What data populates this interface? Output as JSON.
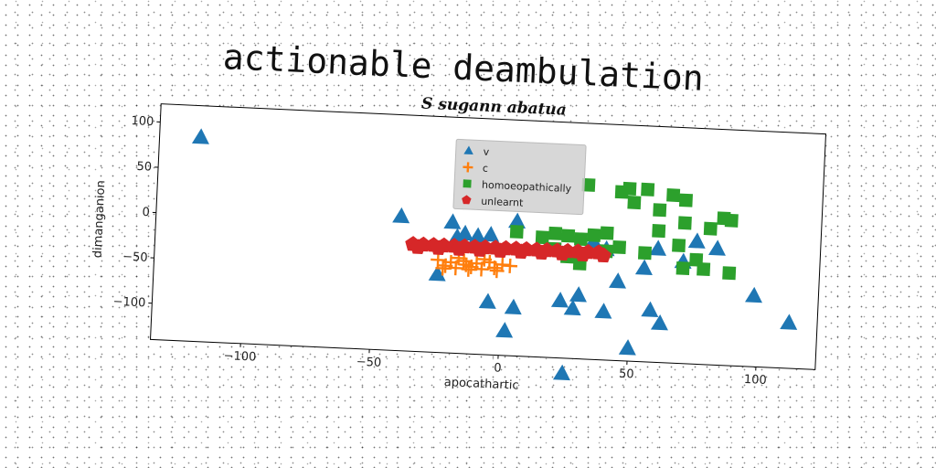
{
  "title": "actionable deambulation",
  "chart_data": {
    "type": "scatter",
    "title": "S sugann abatua",
    "xlabel": "apocathartic",
    "ylabel": "dimanganion",
    "xlim": [
      -135,
      123
    ],
    "ylim": [
      -140,
      120
    ],
    "xticks": [
      -100,
      -50,
      0,
      50,
      100
    ],
    "yticks": [
      100,
      50,
      0,
      -50,
      -100
    ],
    "grid": false,
    "legend": "top-center",
    "series": [
      {
        "name": "v",
        "marker": "triangle",
        "color": "#1f77b4",
        "points": [
          [
            -119,
            85
          ],
          [
            -40,
            8
          ],
          [
            -20,
            4
          ],
          [
            -18,
            -12
          ],
          [
            -15,
            -8
          ],
          [
            -10,
            -10
          ],
          [
            -5,
            -8
          ],
          [
            5,
            8
          ],
          [
            -25,
            -54
          ],
          [
            -5,
            -82
          ],
          [
            5,
            -87
          ],
          [
            2,
            -113
          ],
          [
            23,
            -77
          ],
          [
            28,
            -85
          ],
          [
            30,
            -70
          ],
          [
            40,
            -87
          ],
          [
            45,
            -53
          ],
          [
            50,
            -126
          ],
          [
            58,
            -83
          ],
          [
            62,
            -97
          ],
          [
            60,
            -15
          ],
          [
            75,
            -5
          ],
          [
            83,
            -12
          ],
          [
            98,
            -62
          ],
          [
            112,
            -90
          ],
          [
            25,
            -157
          ],
          [
            35,
            -10
          ],
          [
            40,
            -18
          ],
          [
            70,
            -28
          ],
          [
            55,
            -37
          ]
        ]
      },
      {
        "name": "c",
        "marker": "plus",
        "color": "#ff7f0e",
        "points": [
          [
            -25,
            -38
          ],
          [
            -22,
            -44
          ],
          [
            -20,
            -40
          ],
          [
            -18,
            -46
          ],
          [
            -15,
            -38
          ],
          [
            -12,
            -44
          ],
          [
            -10,
            -40
          ],
          [
            -8,
            -46
          ],
          [
            -5,
            -38
          ],
          [
            -3,
            -44
          ],
          [
            0,
            -40
          ],
          [
            -23,
            -47
          ],
          [
            -17,
            -35
          ],
          [
            -13,
            -47
          ],
          [
            -7,
            -35
          ],
          [
            -2,
            -47
          ],
          [
            3,
            -41
          ],
          [
            -14,
            -42
          ]
        ]
      },
      {
        "name": "homoeopathically",
        "marker": "square",
        "color": "#2ca02c",
        "points": [
          [
            5,
            -3
          ],
          [
            15,
            -8
          ],
          [
            20,
            -3
          ],
          [
            25,
            -5
          ],
          [
            30,
            -8
          ],
          [
            35,
            -3
          ],
          [
            40,
            0
          ],
          [
            32,
            52
          ],
          [
            45,
            46
          ],
          [
            48,
            50
          ],
          [
            55,
            50
          ],
          [
            65,
            45
          ],
          [
            70,
            40
          ],
          [
            50,
            35
          ],
          [
            60,
            28
          ],
          [
            85,
            22
          ],
          [
            70,
            15
          ],
          [
            80,
            10
          ],
          [
            88,
            20
          ],
          [
            60,
            5
          ],
          [
            68,
            -10
          ],
          [
            55,
            -20
          ],
          [
            75,
            -25
          ],
          [
            70,
            -35
          ],
          [
            78,
            -35
          ],
          [
            88,
            -38
          ],
          [
            40,
            -20
          ],
          [
            30,
            -35
          ],
          [
            25,
            -28
          ],
          [
            45,
            -15
          ],
          [
            20,
            -20
          ]
        ]
      },
      {
        "name": "unlearnt",
        "marker": "pentagon",
        "color": "#d62728",
        "points": [
          [
            -35,
            -22
          ],
          [
            -31,
            -22
          ],
          [
            -27,
            -22
          ],
          [
            -23,
            -22
          ],
          [
            -19,
            -22
          ],
          [
            -15,
            -22
          ],
          [
            -11,
            -22
          ],
          [
            -7,
            -22
          ],
          [
            -3,
            -22
          ],
          [
            1,
            -22
          ],
          [
            5,
            -22
          ],
          [
            9,
            -22
          ],
          [
            13,
            -22
          ],
          [
            17,
            -22
          ],
          [
            21,
            -22
          ],
          [
            25,
            -22
          ],
          [
            29,
            -22
          ],
          [
            33,
            -22
          ],
          [
            37,
            -22
          ],
          [
            -33,
            -25
          ],
          [
            -25,
            -25
          ],
          [
            -17,
            -25
          ],
          [
            -9,
            -25
          ],
          [
            -1,
            -25
          ],
          [
            7,
            -25
          ],
          [
            15,
            -25
          ],
          [
            23,
            -25
          ],
          [
            31,
            -25
          ],
          [
            39,
            -25
          ]
        ]
      }
    ]
  }
}
